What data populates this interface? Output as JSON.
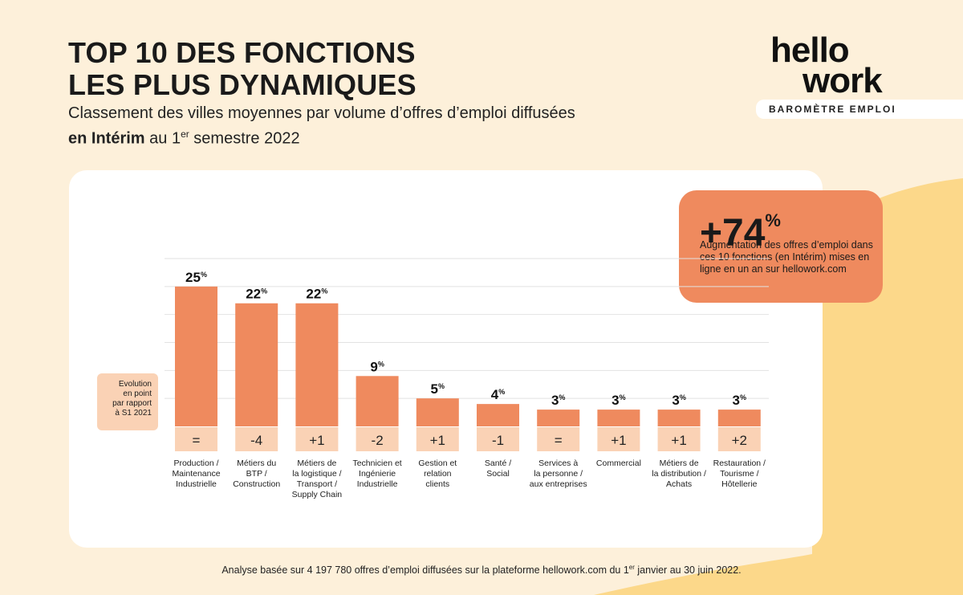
{
  "header": {
    "title_line1": "TOP 10 DES FONCTIONS",
    "title_line2": "LES PLUS DYNAMIQUES",
    "subtitle_line1": "Classement des villes moyennes par volume d’offres d’emploi diffusées",
    "subtitle_bold": "en Intérim",
    "subtitle_mid": " au 1",
    "subtitle_sup": "er",
    "subtitle_end": " semestre 2022"
  },
  "logo": {
    "line1": "hello",
    "line2": "work",
    "tagline": "BAROMÈTRE EMPLOI"
  },
  "callout": {
    "value": "+74",
    "unit": "%",
    "description": "Augmentation des offres d’emploi dans ces 10 fonctions (en Intérim) mises en ligne en un an sur hellowork.com"
  },
  "evolution_label": {
    "line1": "Evolution",
    "line2": "en point",
    "line3": "par rapport",
    "line4": "à S1 2021"
  },
  "footnote": {
    "part1": "Analyse basée sur 4 197 780 offres d’emploi diffusées sur la plateforme hellowork.com du 1",
    "sup": "er",
    "part2": " janvier au 30 juin 2022."
  },
  "colors": {
    "background": "#FDF0DA",
    "blob": "#FCD88A",
    "bar": "#EF8A5E",
    "evolution_box": "#FAD2B5",
    "grid": "#e2e2e2"
  },
  "chart_data": {
    "type": "bar",
    "title": "TOP 10 DES FONCTIONS LES PLUS DYNAMIQUES",
    "unit": "%",
    "ylim": [
      0,
      30
    ],
    "grid": true,
    "categories": [
      [
        "Production /",
        "Maintenance",
        "Industrielle"
      ],
      [
        "Métiers du",
        "BTP /",
        "Construction"
      ],
      [
        "Métiers de",
        "la logistique /",
        "Transport /",
        "Supply Chain"
      ],
      [
        "Technicien et",
        "Ingénierie",
        "Industrielle"
      ],
      [
        "Gestion et",
        "relation",
        "clients"
      ],
      [
        "Santé /",
        "Social"
      ],
      [
        "Services à",
        "la personne /",
        "aux entreprises"
      ],
      [
        "Commercial"
      ],
      [
        "Métiers de",
        "la distribution /",
        "Achats"
      ],
      [
        "Restauration /",
        "Tourisme /",
        "Hôtellerie"
      ]
    ],
    "values": [
      25,
      22,
      22,
      9,
      5,
      4,
      3,
      3,
      3,
      3
    ],
    "value_labels": [
      "25",
      "22",
      "22",
      "9",
      "5",
      "4",
      "3",
      "3",
      "3",
      "3"
    ],
    "evolution": [
      "=",
      "-4",
      "+1",
      "-2",
      "+1",
      "-1",
      "=",
      "+1",
      "+1",
      "+2"
    ]
  }
}
